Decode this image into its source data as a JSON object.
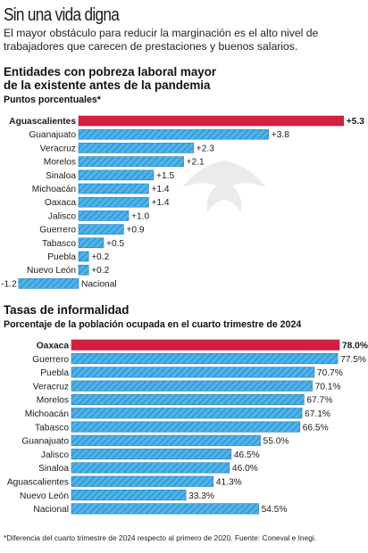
{
  "header": {
    "title": "Sin una vida digna",
    "subtitle": "El mayor obstáculo para reducir la marginación es el alto nivel de trabajadores que carecen de prestaciones y buenos salarios."
  },
  "section1": {
    "title_line1": "Entidades con pobreza laboral  mayor",
    "title_line2": "de la existente antes de la pandemia",
    "subtitle": "Puntos porcentuales*"
  },
  "section2": {
    "title": "Tasas de informalidad",
    "subtitle": "Porcentaje de la población ocupada en el cuarto trimestre de 2024"
  },
  "footnote": "*Diferencia del cuarto trimestre de 2024 respecto al primero de 2020. Fuente: Coneval e Inegi.",
  "colors": {
    "highlight": "#d1213f",
    "bar": "#4fb3e8",
    "hatch": "#1e7fc4"
  },
  "chart_data": [
    {
      "type": "bar",
      "orientation": "horizontal",
      "title": "Entidades con pobreza laboral  mayor de la existente antes de la pandemia",
      "unit": "Puntos porcentuales*",
      "categories": [
        "Aguascalientes",
        "Guanajuato",
        "Veracruz",
        "Morelos",
        "Sinaloa",
        "Michoacán",
        "Oaxaca",
        "Jalisco",
        "Guerrero",
        "Tabasco",
        "Puebla",
        "Nuevo León",
        "Nacional"
      ],
      "values": [
        5.3,
        3.8,
        2.3,
        2.1,
        1.5,
        1.4,
        1.4,
        1.0,
        0.9,
        0.5,
        0.2,
        0.2,
        -1.2
      ],
      "value_labels": [
        "+5.3",
        "+3.8",
        "+2.3",
        "+2.1",
        "+1.5",
        "+1.4",
        "+1.4",
        "+1.0",
        "+0.9",
        "+0.5",
        "+0.2",
        "+0.2",
        "-1.2"
      ],
      "highlight_index": 0
    },
    {
      "type": "bar",
      "orientation": "horizontal",
      "title": "Tasas de informalidad",
      "unit": "Porcentaje de la población ocupada en el cuarto trimestre de 2024",
      "categories": [
        "Oaxaca",
        "Guerrero",
        "Puebla",
        "Veracruz",
        "Morelos",
        "Michoacán",
        "Tabasco",
        "Guanajuato",
        "Jalisco",
        "Sinaloa",
        "Aguascalientes",
        "Nuevo León",
        "Nacional"
      ],
      "values": [
        78.0,
        77.5,
        70.7,
        70.1,
        67.7,
        67.1,
        66.5,
        55.0,
        46.5,
        46.0,
        41.3,
        33.3,
        54.5
      ],
      "value_labels": [
        "78.0%",
        "77.5%",
        "70.7%",
        "70.1%",
        "67.7%",
        "67.1%",
        "66.5%",
        "55.0%",
        "46.5%",
        "46.0%",
        "41.3%",
        "33.3%",
        "54.5%"
      ],
      "highlight_index": 0
    }
  ]
}
